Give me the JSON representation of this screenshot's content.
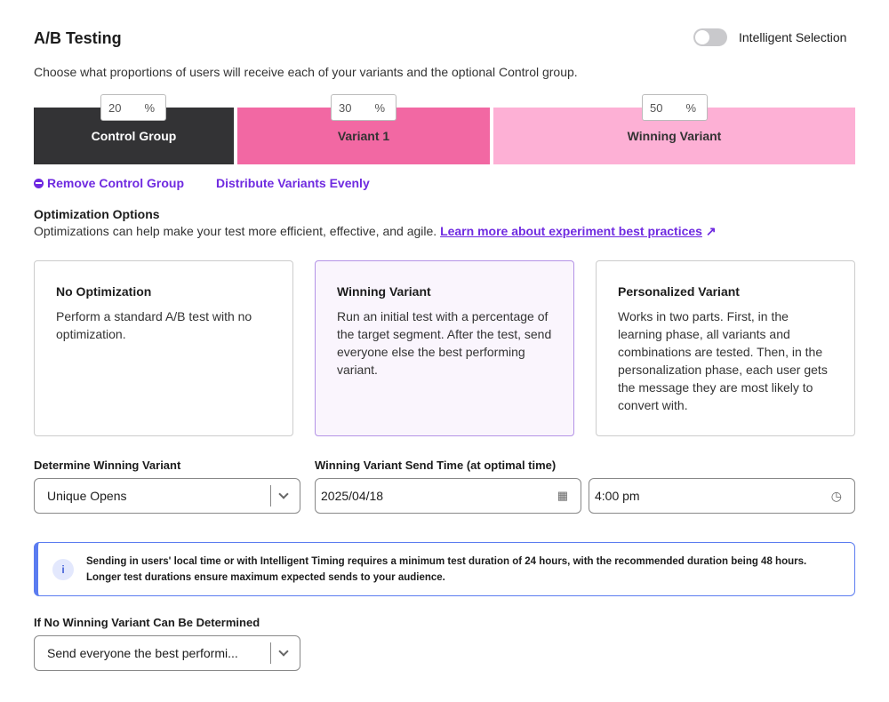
{
  "header": {
    "title": "A/B Testing",
    "toggle_label": "Intelligent Selection",
    "toggle_on": false
  },
  "description": "Choose what proportions of users will receive each of your variants and the optional Control group.",
  "groups": [
    {
      "label": "Control Group",
      "percent": "20",
      "unit": "%",
      "color": "#333335"
    },
    {
      "label": "Variant 1",
      "percent": "30",
      "unit": "%",
      "color": "#f268a3"
    },
    {
      "label": "Winning Variant",
      "percent": "50",
      "unit": "%",
      "color": "#fdb0d5"
    }
  ],
  "links": {
    "remove_control": "Remove Control Group",
    "distribute": "Distribute Variants Evenly"
  },
  "optimization": {
    "title": "Optimization Options",
    "subtitle": "Optimizations can help make your test more efficient, effective, and agile.",
    "learn_more": "Learn more about experiment best practices",
    "cards": [
      {
        "title": "No Optimization",
        "body": "Perform a standard A/B test with no optimization.",
        "selected": false
      },
      {
        "title": "Winning Variant",
        "body": "Run an initial test with a percentage of the target segment. After the test, send everyone else the best performing variant.",
        "selected": true
      },
      {
        "title": "Personalized Variant",
        "body": "Works in two parts. First, in the learning phase, all variants and combinations are tested. Then, in the personalization phase, each user gets the message they are most likely to convert with.",
        "selected": false
      }
    ]
  },
  "determine": {
    "label": "Determine Winning Variant",
    "value": "Unique Opens"
  },
  "send_time": {
    "label": "Winning Variant Send Time (at optimal time)",
    "date": "2025/04/18",
    "time": "4:00 pm"
  },
  "info": {
    "line1": "Sending in users' local time or with Intelligent Timing requires a minimum test duration of 24 hours, with the recommended duration being 48 hours.",
    "line2": "Longer test durations ensure maximum expected sends to your audience."
  },
  "fallback": {
    "label": "If No Winning Variant Can Be Determined",
    "value": "Send everyone the best performi..."
  }
}
